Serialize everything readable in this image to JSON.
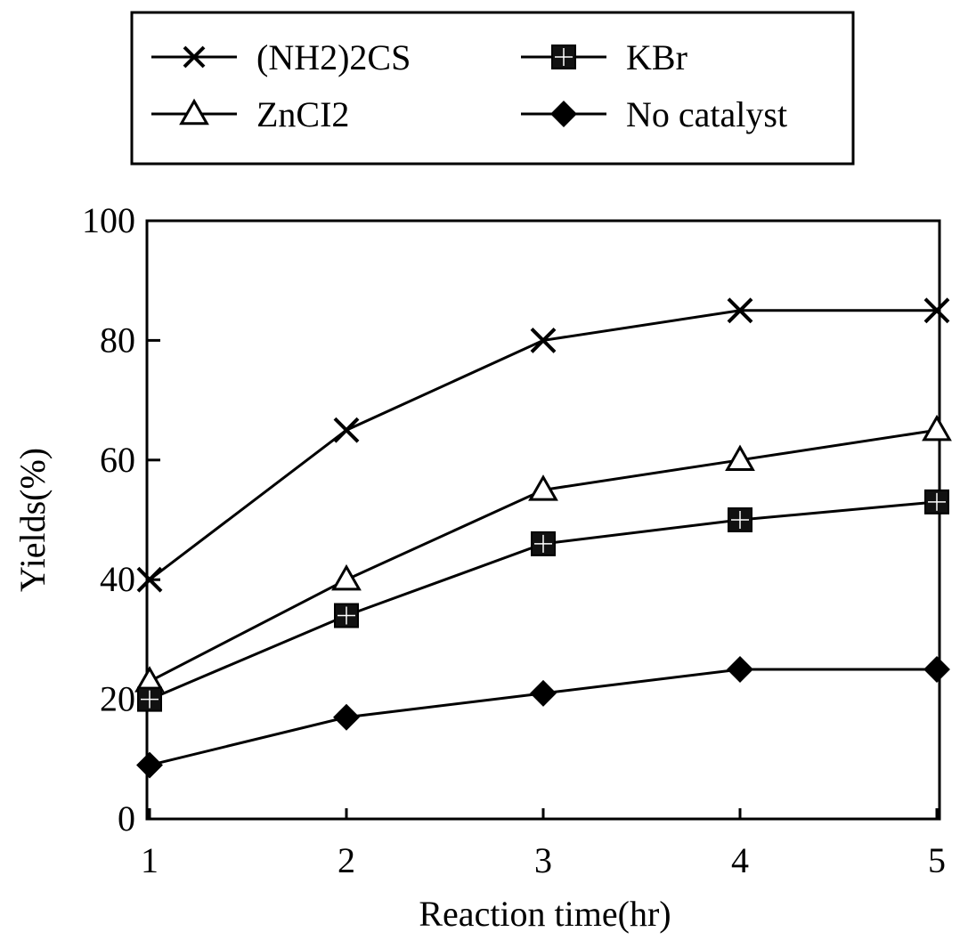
{
  "chart_data": {
    "type": "line",
    "xlabel": "Reaction time(hr)",
    "ylabel": "Yields(%)",
    "x": [
      1,
      2,
      3,
      4,
      5
    ],
    "xlim": [
      1,
      5
    ],
    "ylim": [
      0,
      100
    ],
    "x_ticks": [
      "1",
      "2",
      "3",
      "4",
      "5"
    ],
    "y_ticks": [
      "0",
      "20",
      "40",
      "60",
      "80",
      "100"
    ],
    "grid": false,
    "legend_position": "top-center, above plot",
    "series": [
      {
        "name": "(NH2)2CS",
        "marker": "x",
        "values": [
          40,
          65,
          80,
          85,
          85
        ]
      },
      {
        "name": "ZnCI2",
        "marker": "triangle-open",
        "values": [
          23,
          40,
          55,
          60,
          65
        ]
      },
      {
        "name": "KBr",
        "marker": "square-filled",
        "values": [
          20,
          34,
          46,
          50,
          53
        ]
      },
      {
        "name": "No catalyst",
        "marker": "diamond-filled",
        "values": [
          9,
          17,
          21,
          25,
          25
        ]
      }
    ]
  }
}
